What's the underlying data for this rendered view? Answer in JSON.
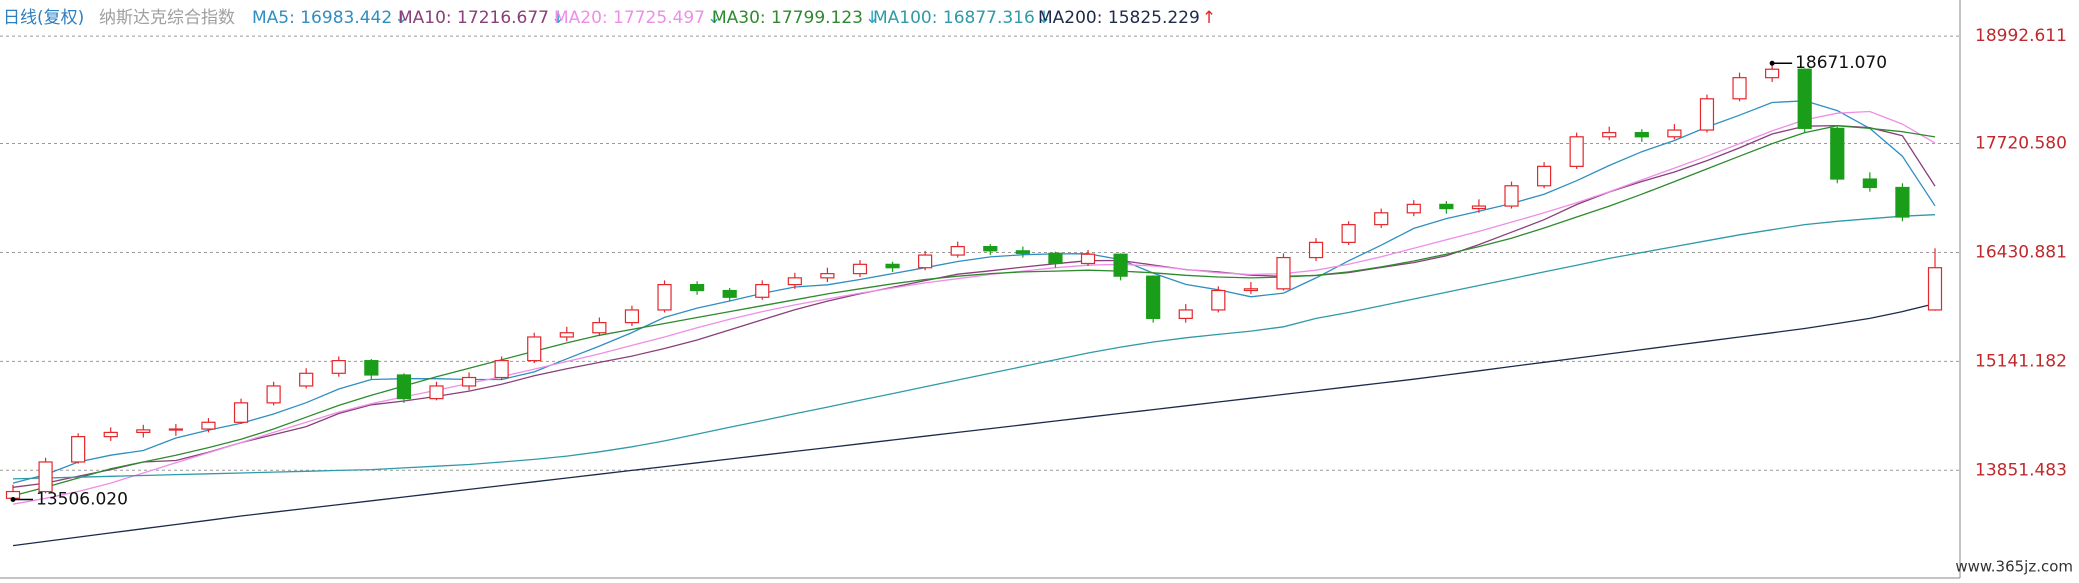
{
  "header": {
    "period": "日线(复权)",
    "name": "纳斯达克综合指数"
  },
  "chart_data": {
    "type": "candlestick",
    "open": [
      13520,
      13600,
      13950,
      14250,
      14300,
      14330,
      14340,
      14420,
      14650,
      14850,
      15000,
      15150,
      14980,
      14700,
      14850,
      14950,
      15150,
      15430,
      15480,
      15600,
      15750,
      16050,
      15980,
      15900,
      16050,
      16130,
      16180,
      16290,
      16250,
      16400,
      16500,
      16450,
      16420,
      16300,
      16410,
      16150,
      15650,
      15750,
      15980,
      16000,
      16370,
      16550,
      16760,
      16900,
      17000,
      16950,
      16980,
      17220,
      17450,
      17800,
      17850,
      17800,
      17880,
      18250,
      18500,
      18600,
      17900,
      17300,
      17200,
      15750
    ],
    "high": [
      13680,
      14000,
      14290,
      14360,
      14390,
      14400,
      14470,
      14700,
      14900,
      15060,
      15200,
      15170,
      15000,
      14900,
      15010,
      15200,
      15480,
      15550,
      15660,
      15800,
      16100,
      16090,
      16010,
      16100,
      16190,
      16250,
      16340,
      16320,
      16450,
      16560,
      16530,
      16500,
      16440,
      16460,
      16420,
      16160,
      15820,
      16030,
      16080,
      16420,
      16600,
      16800,
      16950,
      17050,
      17040,
      17060,
      17270,
      17500,
      17850,
      17920,
      17890,
      17950,
      18300,
      18560,
      18671.07,
      18610,
      17920,
      17380,
      17250,
      16480
    ],
    "low": [
      13506.02,
      13580,
      13930,
      14200,
      14240,
      14260,
      14300,
      14400,
      14620,
      14820,
      14960,
      14930,
      14650,
      14680,
      14800,
      14920,
      15120,
      15380,
      15440,
      15560,
      15720,
      15930,
      15850,
      15870,
      16000,
      16080,
      16140,
      16200,
      16220,
      16370,
      16400,
      16370,
      16250,
      16270,
      16100,
      15600,
      15600,
      15720,
      15940,
      15980,
      16330,
      16520,
      16720,
      16860,
      16890,
      16900,
      16950,
      17190,
      17420,
      17760,
      17740,
      17770,
      17850,
      18220,
      18450,
      17850,
      17250,
      17150,
      16800,
      15740
    ],
    "close": [
      13600,
      13950,
      14250,
      14300,
      14330,
      14340,
      14420,
      14650,
      14850,
      15000,
      15150,
      14980,
      14700,
      14850,
      14950,
      15150,
      15430,
      15480,
      15600,
      15750,
      16050,
      15980,
      15900,
      16050,
      16130,
      16180,
      16290,
      16250,
      16400,
      16500,
      16450,
      16420,
      16300,
      16410,
      16150,
      15650,
      15750,
      15980,
      16000,
      16370,
      16550,
      16760,
      16900,
      17000,
      16950,
      16980,
      17220,
      17450,
      17800,
      17850,
      17800,
      17880,
      18250,
      18500,
      18600,
      17900,
      17300,
      17200,
      16850,
      16250
    ],
    "up_color": "#e5262b",
    "down_color": "#1a9e1a",
    "ylim": [
      12600,
      19100
    ],
    "yticks": [
      13851.483,
      15141.182,
      16430.881,
      {
        "value": 17720.58,
        "label": "17720.580"
      },
      18992.611
    ],
    "tick_color": "#c0282c",
    "grid": true,
    "series": [
      {
        "name": "MA5: 16983.442",
        "arrow": "↓",
        "arrow_color": "#27a6c9",
        "color": "#2f8fc0",
        "values": [
          13700,
          13800,
          13950,
          14030,
          14086,
          14234,
          14328,
          14408,
          14518,
          14652,
          14814,
          14926,
          14936,
          14936,
          14926,
          14926,
          15016,
          15172,
          15322,
          15482,
          15662,
          15772,
          15856,
          15946,
          16022,
          16048,
          16110,
          16180,
          16250,
          16324,
          16378,
          16404,
          16414,
          16416,
          16346,
          16186,
          16052,
          15988,
          15906,
          15950,
          16130,
          16332,
          16516,
          16716,
          16832,
          16918,
          17010,
          17120,
          17280,
          17460,
          17624,
          17756,
          17916,
          18056,
          18206,
          18226,
          18110,
          17900,
          17570,
          16983.442
        ]
      },
      {
        "name": "MA10: 17216.677",
        "arrow": "↓",
        "arrow_color": "#27a6c9",
        "color": "#8a3f7a",
        "values": [
          13650,
          13700,
          13780,
          13860,
          13950,
          13967,
          14064,
          14179,
          14274,
          14369,
          14524,
          14627,
          14672,
          14727,
          14789,
          14870,
          14971,
          15054,
          15129,
          15204,
          15294,
          15394,
          15514,
          15634,
          15752,
          15855,
          15941,
          16018,
          16098,
          16173,
          16213,
          16257,
          16297,
          16333,
          16335,
          16282,
          16228,
          16201,
          16161,
          16148,
          16158,
          16192,
          16252,
          16311,
          16391,
          16524,
          16671,
          16818,
          16998,
          17146,
          17271,
          17383,
          17518,
          17668,
          17833,
          17925,
          17933,
          17908,
          17813,
          17216.677
        ]
      },
      {
        "name": "MA20: 17725.497",
        "arrow": "↓",
        "arrow_color": "#27a6c9",
        "color": "#ef8ee8",
        "values": [
          13450,
          13520,
          13600,
          13700,
          13820,
          13940,
          14060,
          14180,
          14300,
          14420,
          14540,
          14640,
          14720,
          14800,
          14880,
          14960,
          15050,
          15140,
          15230,
          15330,
          15430,
          15540,
          15640,
          15730,
          15810,
          15880,
          15950,
          16010,
          16070,
          16120,
          16170,
          16210,
          16250,
          16280,
          16290,
          16270,
          16230,
          16190,
          16170,
          16180,
          16220,
          16290,
          16380,
          16480,
          16580,
          16680,
          16790,
          16900,
          17020,
          17150,
          17290,
          17430,
          17570,
          17720,
          17870,
          18000,
          18080,
          18100,
          17950,
          17725.497
        ]
      },
      {
        "name": "MA30: 17799.123",
        "arrow": "↓",
        "arrow_color": "#27a6c9",
        "color": "#2e8a2e",
        "values": [
          13550,
          13650,
          13760,
          13870,
          13950,
          14030,
          14120,
          14220,
          14340,
          14480,
          14620,
          14740,
          14850,
          14960,
          15060,
          15160,
          15260,
          15360,
          15450,
          15520,
          15590,
          15660,
          15730,
          15800,
          15870,
          15940,
          16000,
          16060,
          16110,
          16150,
          16180,
          16200,
          16210,
          16220,
          16210,
          16190,
          16160,
          16140,
          16130,
          16140,
          16160,
          16200,
          16260,
          16330,
          16410,
          16500,
          16600,
          16720,
          16850,
          16980,
          17120,
          17270,
          17420,
          17570,
          17720,
          17850,
          17930,
          17900,
          17860,
          17799.123
        ]
      },
      {
        "name": "MA100: 16877.316",
        "arrow": "↓",
        "arrow_color": "#27a6c9",
        "color": "#2f9aa8",
        "values": [
          13750,
          13760,
          13770,
          13780,
          13790,
          13800,
          13810,
          13820,
          13830,
          13840,
          13850,
          13860,
          13880,
          13900,
          13920,
          13950,
          13980,
          14020,
          14070,
          14130,
          14200,
          14280,
          14360,
          14440,
          14520,
          14600,
          14680,
          14760,
          14840,
          14920,
          15000,
          15080,
          15160,
          15240,
          15310,
          15370,
          15420,
          15460,
          15500,
          15550,
          15650,
          15720,
          15800,
          15880,
          15960,
          16040,
          16120,
          16200,
          16280,
          16360,
          16430,
          16500,
          16570,
          16640,
          16700,
          16760,
          16800,
          16830,
          16860,
          16877.316
        ]
      },
      {
        "name": "MA200: 15825.229",
        "arrow": "↑",
        "arrow_color": "#e5262b",
        "color": "#1d2b4a",
        "values": [
          12960,
          13010,
          13060,
          13110,
          13160,
          13210,
          13260,
          13310,
          13355,
          13400,
          13445,
          13490,
          13535,
          13580,
          13625,
          13670,
          13715,
          13760,
          13805,
          13850,
          13895,
          13940,
          13985,
          14030,
          14075,
          14120,
          14165,
          14210,
          14255,
          14300,
          14345,
          14390,
          14435,
          14480,
          14525,
          14570,
          14615,
          14660,
          14705,
          14750,
          14795,
          14840,
          14885,
          14930,
          14980,
          15030,
          15080,
          15130,
          15180,
          15230,
          15280,
          15330,
          15380,
          15430,
          15480,
          15530,
          15590,
          15650,
          15730,
          15825.229
        ]
      }
    ],
    "annotations": [
      {
        "value": 18671.07,
        "label": "18671.070"
      },
      {
        "value": 13506.02,
        "label": "13506.020"
      }
    ]
  },
  "watermark": "www.365jz.com"
}
